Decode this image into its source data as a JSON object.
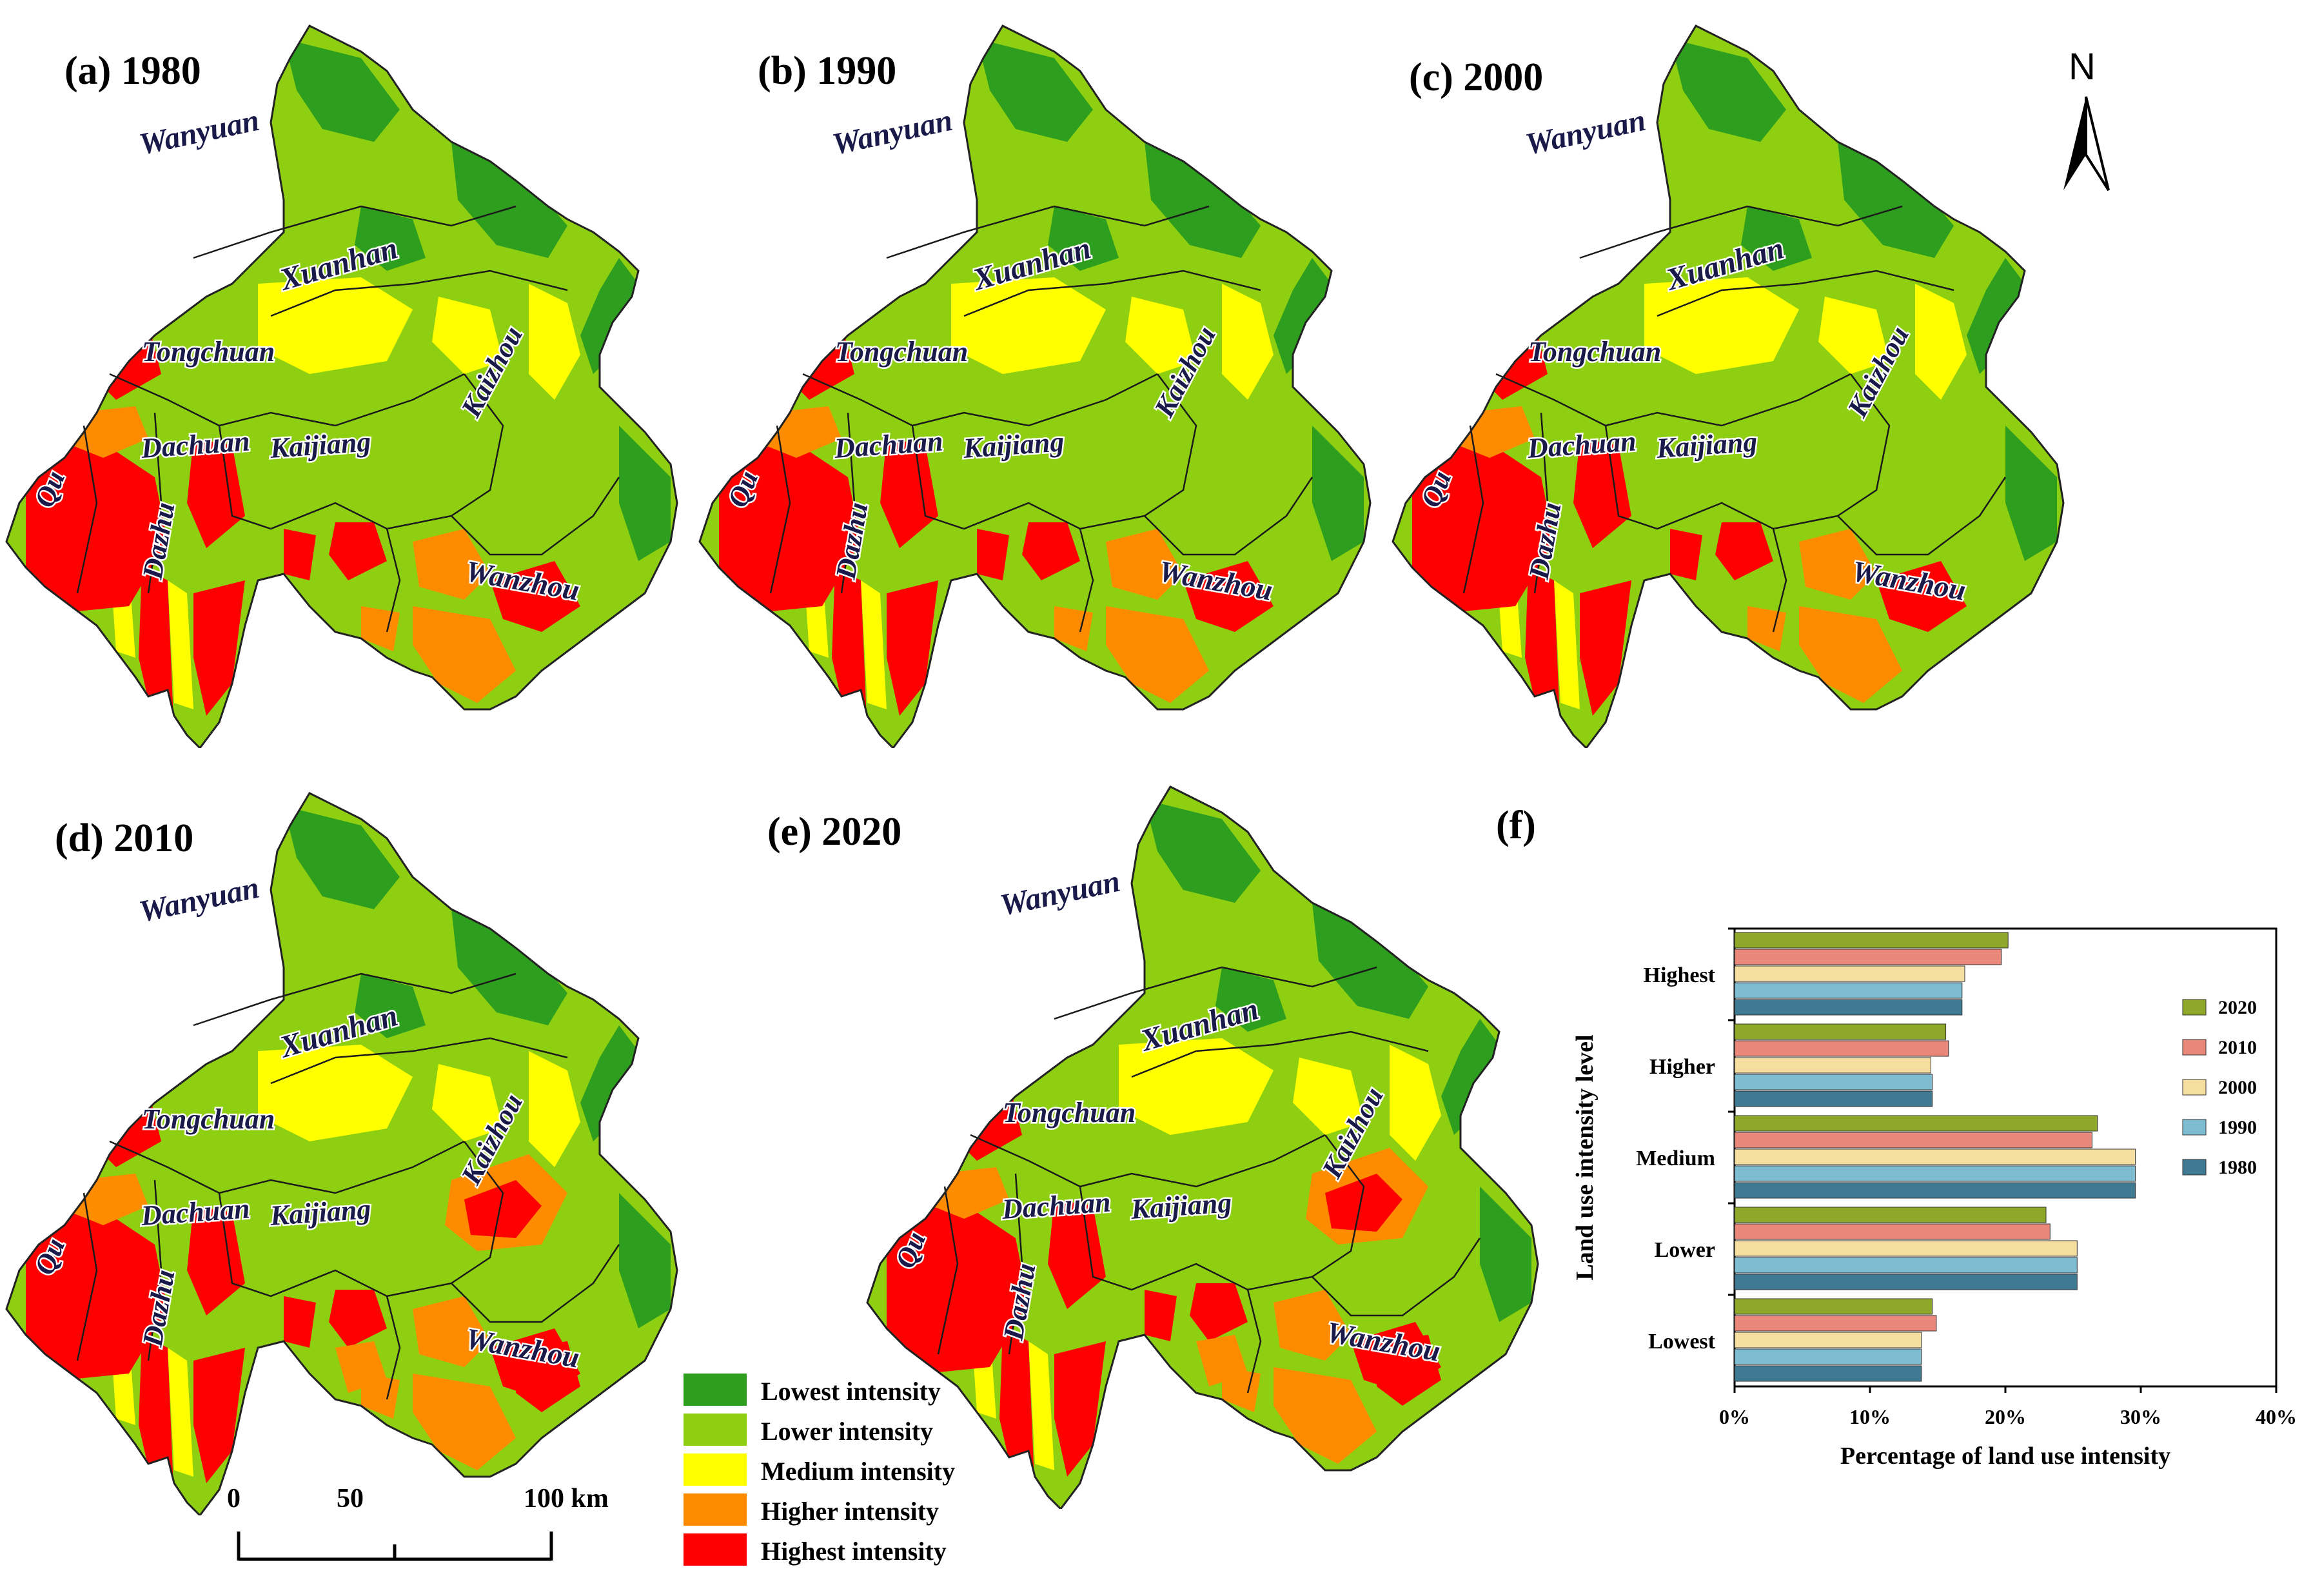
{
  "panels": [
    {
      "id": "a",
      "title": "(a) 1980",
      "year": "1980"
    },
    {
      "id": "b",
      "title": "(b) 1990",
      "year": "1990"
    },
    {
      "id": "c",
      "title": "(c) 2000",
      "year": "2000"
    },
    {
      "id": "d",
      "title": "(d) 2010",
      "year": "2010"
    },
    {
      "id": "e",
      "title": "(e) 2020",
      "year": "2020"
    }
  ],
  "places": [
    "Wanyuan",
    "Xuanhan",
    "Tongchuan",
    "Kaizhou",
    "Dachuan",
    "Kaijiang",
    "Qu",
    "Dazhu",
    "Wanzhou"
  ],
  "north_arrow": {
    "letter": "N"
  },
  "scale_bar": {
    "labels": [
      "0",
      "50",
      "100 km"
    ]
  },
  "legend": {
    "items": [
      {
        "label": "Lowest intensity",
        "color": "#2e9e1e"
      },
      {
        "label": "Lower intensity",
        "color": "#8fcf12"
      },
      {
        "label": "Medium intensity",
        "color": "#ffff00"
      },
      {
        "label": "Higher intensity",
        "color": "#ff8c00"
      },
      {
        "label": "Highest  intensity",
        "color": "#ff0000"
      }
    ]
  },
  "chart_panel_label": "(f)",
  "chart_data": {
    "type": "bar",
    "orientation": "horizontal",
    "categories": [
      "Highest",
      "Higher",
      "Medium",
      "Lower",
      "Lowest"
    ],
    "xlabel": "Percentage of land use intensity",
    "ylabel": "Land use intensity level",
    "xlim": [
      0,
      40
    ],
    "xticks": [
      "0%",
      "10%",
      "20%",
      "30%",
      "40%"
    ],
    "legend_position": "right",
    "series": [
      {
        "name": "2020",
        "color": "#8fa82a",
        "values": [
          20.2,
          15.6,
          26.8,
          23.0,
          14.6
        ]
      },
      {
        "name": "2010",
        "color": "#e8877a",
        "values": [
          19.7,
          15.8,
          26.4,
          23.3,
          14.9
        ]
      },
      {
        "name": "2000",
        "color": "#f5dea0",
        "values": [
          17.0,
          14.5,
          29.6,
          25.3,
          13.8
        ]
      },
      {
        "name": "1990",
        "color": "#7dbcd1",
        "values": [
          16.8,
          14.6,
          29.6,
          25.3,
          13.8
        ]
      },
      {
        "name": "1980",
        "color": "#3f7a92",
        "values": [
          16.8,
          14.6,
          29.6,
          25.3,
          13.8
        ]
      }
    ]
  }
}
